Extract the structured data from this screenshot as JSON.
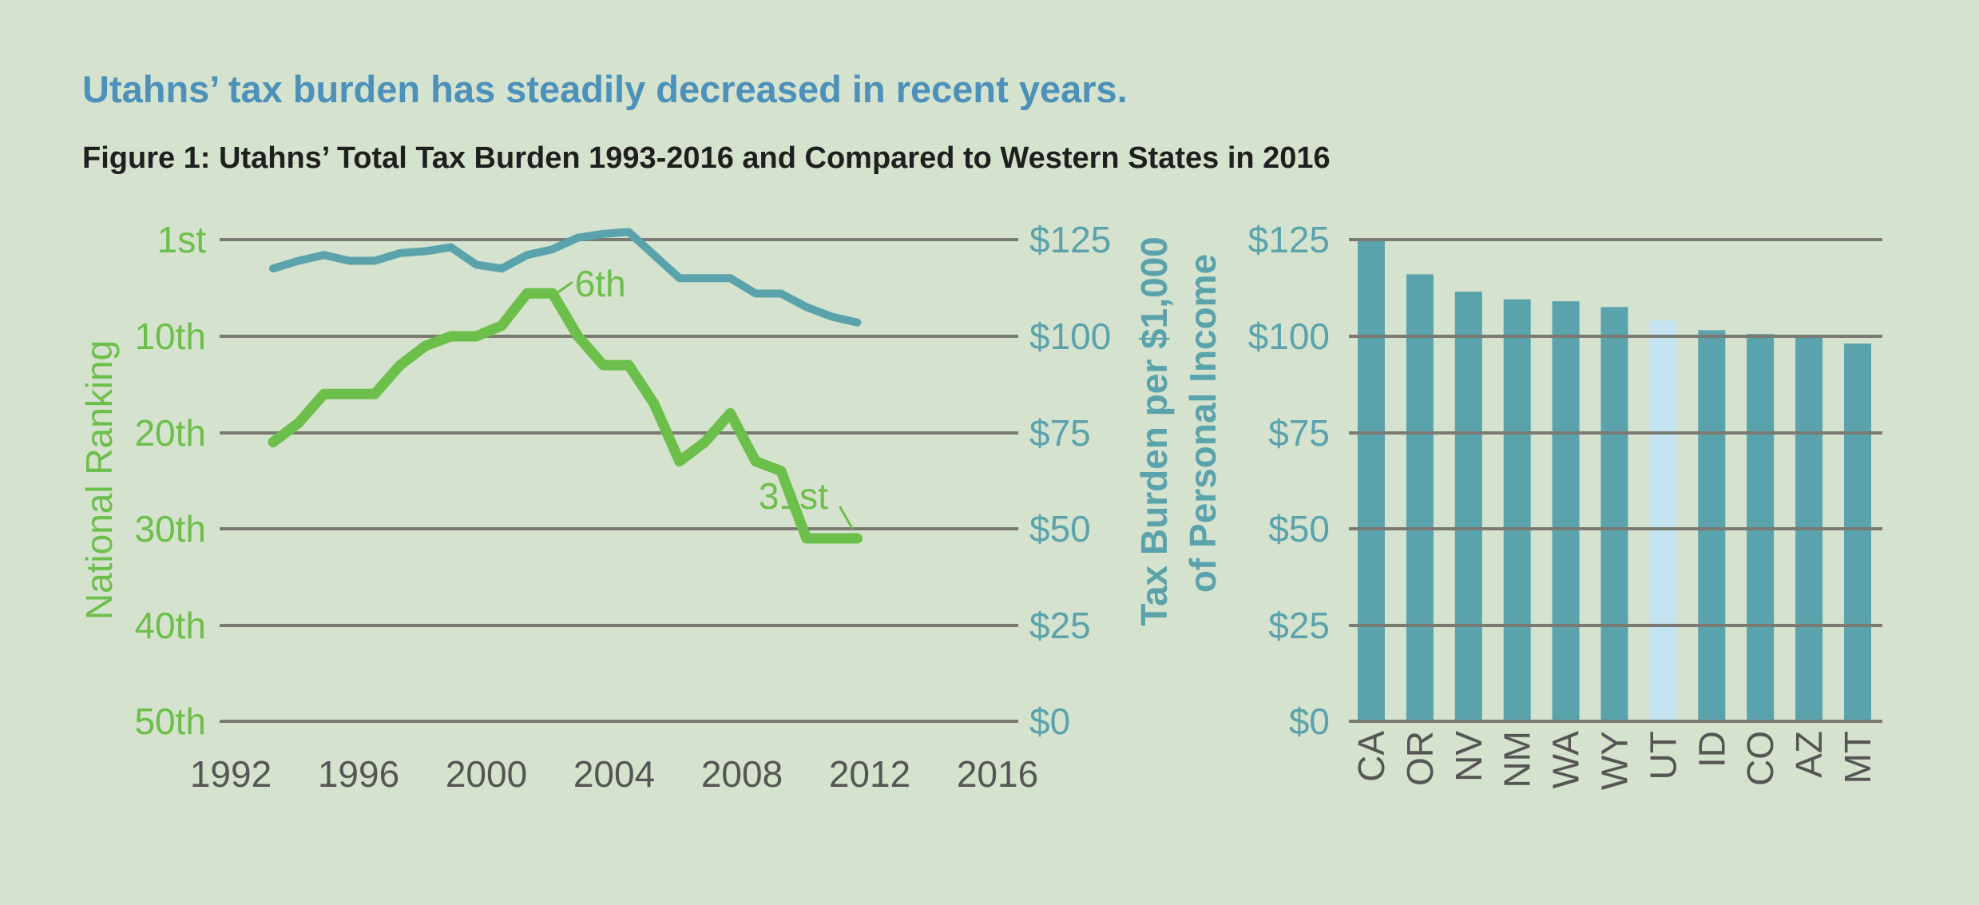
{
  "headline": "Utahns’ tax burden has steadily decreased in recent years.",
  "figure_title": "Figure 1: Utahns’ Total Tax Burden 1993-2016 and Compared to Western States in 2016",
  "colors": {
    "background": "#d5e2cd",
    "ranking": "#6bbf4a",
    "burden": "#5aa3ad",
    "highlight": "#c3e3f1",
    "gridline": "#7a7a72",
    "axis_text": "#555555",
    "headline": "#4b91b9"
  },
  "chart_data": [
    {
      "type": "line",
      "x_ticks": [
        "1992",
        "1996",
        "2000",
        "2004",
        "2008",
        "2012",
        "2016"
      ],
      "x_range": [
        1992,
        2016
      ],
      "left_axis": {
        "label": "National Ranking",
        "ticks": [
          "1st",
          "10th",
          "20th",
          "30th",
          "40th",
          "50th"
        ],
        "range": [
          1,
          50
        ]
      },
      "right_axis": {
        "label_line1": "Tax Burden per $1,000",
        "label_line2": "of Personal Income",
        "ticks": [
          "$125",
          "$100",
          "$75",
          "$50",
          "$25",
          "$0"
        ],
        "range": [
          0,
          125
        ]
      },
      "grid": true,
      "series": [
        {
          "axis": "left",
          "x": [
            1993,
            1994,
            1995,
            1996,
            1997,
            1998,
            1999,
            2000,
            2001,
            2002,
            2003,
            2004,
            2005,
            2006,
            2007,
            2008,
            2009,
            2010,
            2011,
            2012,
            2013,
            2014,
            2015,
            2016
          ],
          "y": [
            21,
            19,
            16,
            16,
            16,
            13,
            11,
            10,
            10,
            9,
            6,
            6,
            10,
            13,
            13,
            17,
            23,
            21,
            18,
            23,
            24,
            31,
            31,
            31
          ]
        },
        {
          "axis": "right",
          "x": [
            1993,
            1994,
            1995,
            1996,
            1997,
            1998,
            1999,
            2000,
            2001,
            2002,
            2003,
            2004,
            2005,
            2006,
            2007,
            2008,
            2009,
            2010,
            2011,
            2012,
            2013,
            2014,
            2015,
            2016
          ],
          "y": [
            117.5,
            119.5,
            121,
            119.5,
            119.5,
            121.5,
            122,
            123,
            118.5,
            117.5,
            121,
            122.5,
            125.5,
            126.5,
            127,
            121,
            115,
            115,
            115,
            111,
            111,
            107.5,
            105,
            103.5
          ]
        }
      ],
      "annotations": [
        {
          "text": "6th",
          "x": 2004,
          "y": 6,
          "axis": "left"
        },
        {
          "text": "31st",
          "x": 2016,
          "y": 31,
          "axis": "left"
        }
      ]
    },
    {
      "type": "bar",
      "categories": [
        "CA",
        "OR",
        "NV",
        "NM",
        "WA",
        "WY",
        "UT",
        "ID",
        "CO",
        "AZ",
        "MT"
      ],
      "values": [
        125,
        116,
        111.5,
        109.5,
        109,
        107.5,
        104,
        101.5,
        100.5,
        100,
        98
      ],
      "highlight": "UT",
      "y_ticks": [
        "$125",
        "$100",
        "$75",
        "$50",
        "$25",
        "$0"
      ],
      "ylim": [
        0,
        125
      ],
      "grid": true
    }
  ]
}
